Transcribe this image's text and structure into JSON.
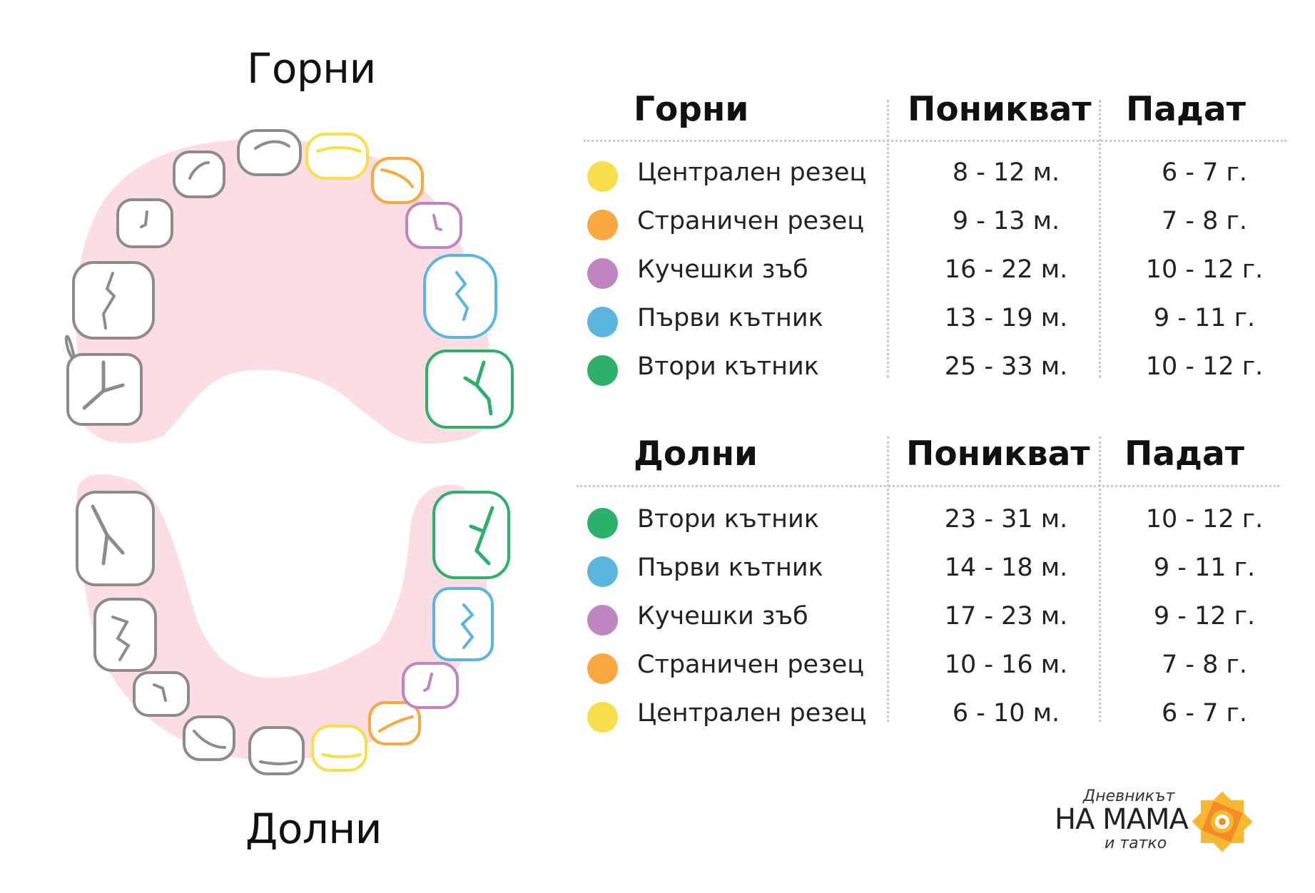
{
  "diagram": {
    "upper_title": "Горни",
    "lower_title": "Долни"
  },
  "colors": {
    "central_incisor": "#F9DD4A",
    "lateral_incisor": "#F9A840",
    "canine": "#BF85C0",
    "first_molar": "#5BB6DF",
    "second_molar": "#2DB06A",
    "gum": "#FBDDE3",
    "tooth_outline_gray": "#8c8c8c"
  },
  "upper_table": {
    "headers": {
      "group": "Горни",
      "erupt": "Поникват",
      "fall": "Падат"
    },
    "rows": [
      {
        "color": "central_incisor",
        "name": "Централен резец",
        "erupt": "8 - 12 м.",
        "fall": "6 - 7 г."
      },
      {
        "color": "lateral_incisor",
        "name": "Страничен резец",
        "erupt": "9 - 13 м.",
        "fall": "7 - 8 г."
      },
      {
        "color": "canine",
        "name": "Кучешки зъб",
        "erupt": "16 - 22 м.",
        "fall": "10 - 12 г."
      },
      {
        "color": "first_molar",
        "name": "Първи кътник",
        "erupt": "13 - 19 м.",
        "fall": "9 - 11 г."
      },
      {
        "color": "second_molar",
        "name": "Втори кътник",
        "erupt": "25 - 33 м.",
        "fall": "10 - 12 г."
      }
    ]
  },
  "lower_table": {
    "headers": {
      "group": "Долни",
      "erupt": "Поникват",
      "fall": "Падат"
    },
    "rows": [
      {
        "color": "second_molar",
        "name": "Втори кътник",
        "erupt": "23 - 31 м.",
        "fall": "10 - 12 г."
      },
      {
        "color": "first_molar",
        "name": "Първи кътник",
        "erupt": "14 - 18 м.",
        "fall": "9 - 11 г."
      },
      {
        "color": "canine",
        "name": "Кучешки зъб",
        "erupt": "17 - 23 м.",
        "fall": "9 - 12 г."
      },
      {
        "color": "lateral_incisor",
        "name": "Страничен резец",
        "erupt": "10 - 16 м.",
        "fall": "7 - 8 г."
      },
      {
        "color": "central_incisor",
        "name": "Централен резец",
        "erupt": "6 - 10 м.",
        "fall": "6 - 7 г."
      }
    ]
  },
  "logo": {
    "line1": "Дневникът",
    "line2": "НА МАМА",
    "line3": "и татко",
    "icon": "flower-mandala-icon",
    "icon_colors": [
      "#F7B731",
      "#F28C28"
    ]
  }
}
